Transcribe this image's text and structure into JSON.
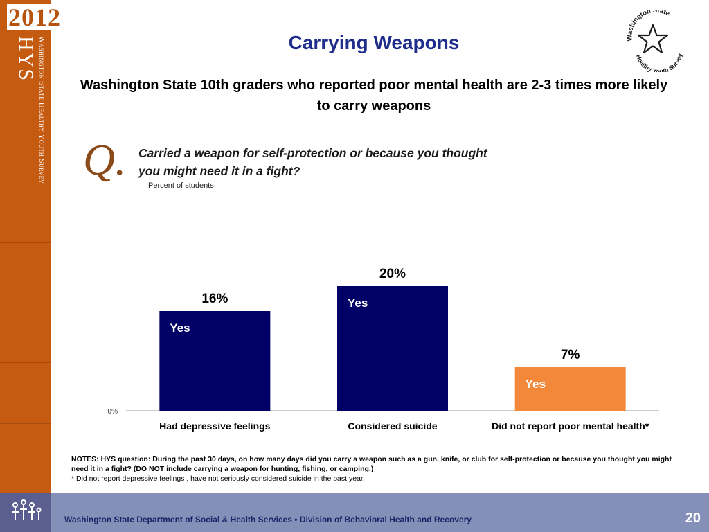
{
  "sidebar": {
    "year": "2012",
    "acronym": "HYS",
    "survey_name": "Washington State Healthy Youth Survey"
  },
  "logo": {
    "top_text": "Washington State",
    "bottom_text": "Healthy Youth Survey"
  },
  "slide": {
    "title": "Carrying Weapons",
    "subtitle": "Washington State 10th graders who reported poor mental health are 2-3 times more likely to carry weapons",
    "q_mark": "Q.",
    "question": "Carried a weapon for self-protection or because you thought you might need it in a fight?",
    "unit_label": "Percent of students"
  },
  "chart_data": {
    "type": "bar",
    "categories": [
      "Had depressive feelings",
      "Considered suicide",
      "Did not report poor mental health*"
    ],
    "values": [
      16,
      20,
      7
    ],
    "value_labels": [
      "16%",
      "20%",
      "7%"
    ],
    "bar_labels": [
      "Yes",
      "Yes",
      "Yes"
    ],
    "colors": [
      "#000066",
      "#000066",
      "#f4883a"
    ],
    "ylim": [
      0,
      20
    ],
    "ytick_labels": [
      "0%"
    ],
    "title": "",
    "xlabel": "",
    "ylabel": "",
    "grid": false
  },
  "notes": {
    "line1": "NOTES: HYS question: During the past 30 days, on how many days did you carry a weapon such as a gun, knife, or club for self-protection or because you thought you might need it in a  fight? (DO NOT include carrying a weapon for hunting, fishing, or camping.)",
    "line2": "* Did not report depressive feelings , have not seriously considered suicide in the past year."
  },
  "footer": {
    "text": "Washington State Department of Social & Health Services • Division of Behavioral Health and Recovery",
    "page_number": "20"
  },
  "colors": {
    "sidebar": "#c55a11",
    "title": "#1f2d8b",
    "bar_primary": "#000066",
    "bar_secondary": "#f4883a",
    "footer": "#8590b8"
  }
}
